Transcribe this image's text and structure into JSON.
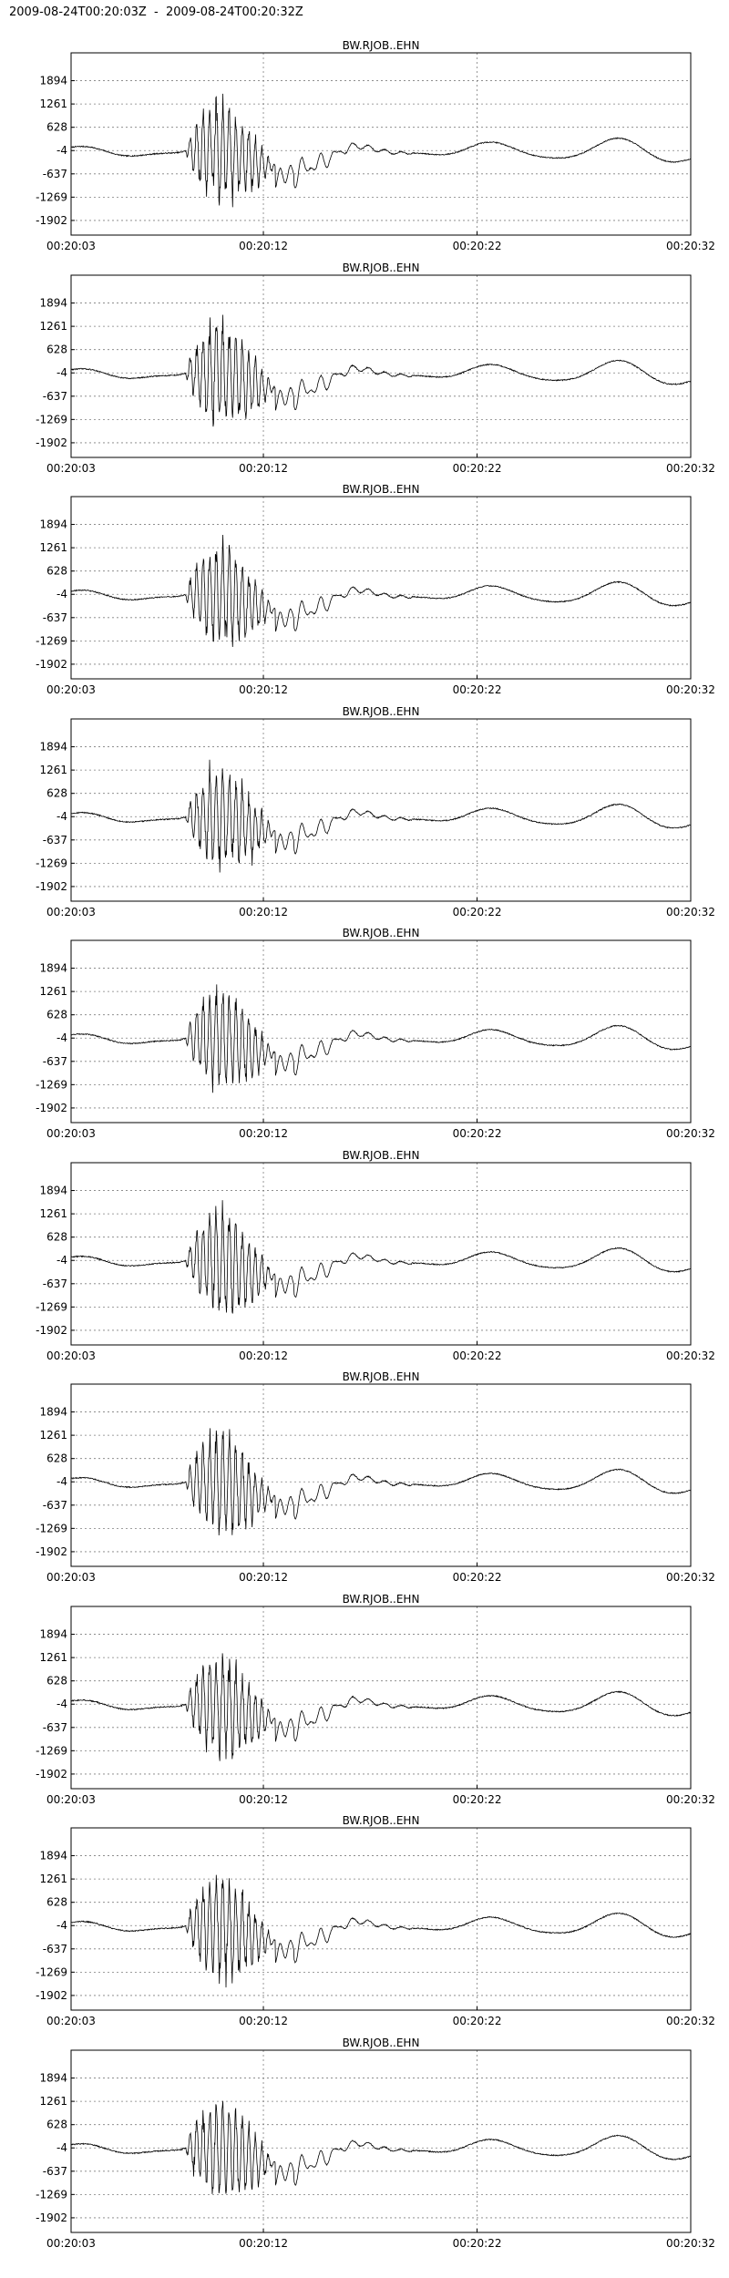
{
  "page": {
    "title": "2009-08-24T00:20:03Z  -  2009-08-24T00:20:32Z"
  },
  "chart_data": [
    {
      "type": "line",
      "title": "BW.RJOB..EHN",
      "xticks": [
        "00:20:03",
        "00:20:12",
        "00:20:22",
        "00:20:32"
      ],
      "yticks": [
        1894,
        1261,
        628,
        -4,
        -637,
        -1269,
        -1902
      ],
      "ylim": [
        -2300,
        2650
      ],
      "grid": true,
      "series": [
        {
          "color": "#000000"
        }
      ]
    },
    {
      "type": "line",
      "title": "BW.RJOB..EHN",
      "xticks": [
        "00:20:03",
        "00:20:12",
        "00:20:22",
        "00:20:32"
      ],
      "yticks": [
        1894,
        1261,
        628,
        -4,
        -637,
        -1269,
        -1902
      ],
      "ylim": [
        -2300,
        2650
      ],
      "grid": true,
      "series": [
        {
          "color": "#000000"
        }
      ]
    },
    {
      "type": "line",
      "title": "BW.RJOB..EHN",
      "xticks": [
        "00:20:03",
        "00:20:12",
        "00:20:22",
        "00:20:32"
      ],
      "yticks": [
        1894,
        1261,
        628,
        -4,
        -637,
        -1269,
        -1902
      ],
      "ylim": [
        -2300,
        2650
      ],
      "grid": true,
      "series": [
        {
          "color": "#000000"
        }
      ]
    },
    {
      "type": "line",
      "title": "BW.RJOB..EHN",
      "xticks": [
        "00:20:03",
        "00:20:12",
        "00:20:22",
        "00:20:32"
      ],
      "yticks": [
        1894,
        1261,
        628,
        -4,
        -637,
        -1269,
        -1902
      ],
      "ylim": [
        -2300,
        2650
      ],
      "grid": true,
      "series": [
        {
          "color": "#000000"
        }
      ]
    },
    {
      "type": "line",
      "title": "BW.RJOB..EHN",
      "xticks": [
        "00:20:03",
        "00:20:12",
        "00:20:22",
        "00:20:32"
      ],
      "yticks": [
        1894,
        1261,
        628,
        -4,
        -637,
        -1269,
        -1902
      ],
      "ylim": [
        -2300,
        2650
      ],
      "grid": true,
      "series": [
        {
          "color": "#000000"
        }
      ]
    },
    {
      "type": "line",
      "title": "BW.RJOB..EHN",
      "xticks": [
        "00:20:03",
        "00:20:12",
        "00:20:22",
        "00:20:32"
      ],
      "yticks": [
        1894,
        1261,
        628,
        -4,
        -637,
        -1269,
        -1902
      ],
      "ylim": [
        -2300,
        2650
      ],
      "grid": true,
      "series": [
        {
          "color": "#000000"
        }
      ]
    },
    {
      "type": "line",
      "title": "BW.RJOB..EHN",
      "xticks": [
        "00:20:03",
        "00:20:12",
        "00:20:22",
        "00:20:32"
      ],
      "yticks": [
        1894,
        1261,
        628,
        -4,
        -637,
        -1269,
        -1902
      ],
      "ylim": [
        -2300,
        2650
      ],
      "grid": true,
      "series": [
        {
          "color": "#000000"
        }
      ]
    },
    {
      "type": "line",
      "title": "BW.RJOB..EHN",
      "xticks": [
        "00:20:03",
        "00:20:12",
        "00:20:22",
        "00:20:32"
      ],
      "yticks": [
        1894,
        1261,
        628,
        -4,
        -637,
        -1269,
        -1902
      ],
      "ylim": [
        -2300,
        2650
      ],
      "grid": true,
      "series": [
        {
          "color": "#000000"
        }
      ]
    },
    {
      "type": "line",
      "title": "BW.RJOB..EHN",
      "xticks": [
        "00:20:03",
        "00:20:12",
        "00:20:22",
        "00:20:32"
      ],
      "yticks": [
        1894,
        1261,
        628,
        -4,
        -637,
        -1269,
        -1902
      ],
      "ylim": [
        -2300,
        2650
      ],
      "grid": true,
      "series": [
        {
          "color": "#000000"
        }
      ]
    },
    {
      "type": "line",
      "title": "BW.RJOB..EHN",
      "xticks": [
        "00:20:03",
        "00:20:12",
        "00:20:22",
        "00:20:32"
      ],
      "yticks": [
        1894,
        1261,
        628,
        -4,
        -637,
        -1269,
        -1902
      ],
      "ylim": [
        -2300,
        2650
      ],
      "grid": true,
      "series": [
        {
          "color": "#000000"
        }
      ]
    }
  ]
}
